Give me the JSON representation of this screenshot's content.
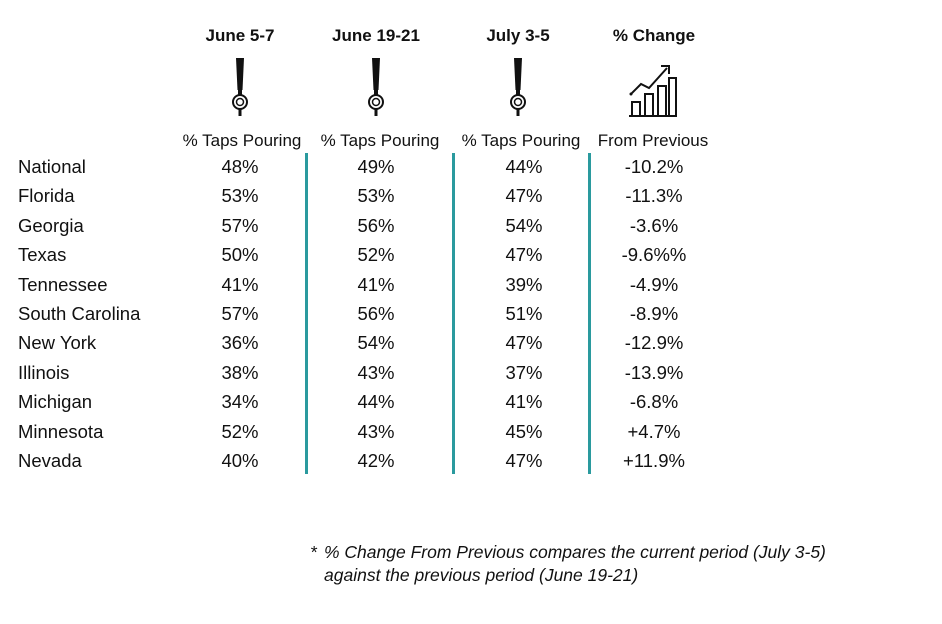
{
  "columns": [
    {
      "title": "June 5-7",
      "subtitle": "% Taps Pouring"
    },
    {
      "title": "June 19-21",
      "subtitle": "% Taps Pouring"
    },
    {
      "title": "July 3-5",
      "subtitle": "% Taps Pouring"
    },
    {
      "title": "% Change",
      "subtitle": "From Previous"
    }
  ],
  "icons": [
    "beer-tap-icon",
    "beer-tap-icon",
    "beer-tap-icon",
    "growth-chart-icon"
  ],
  "accent_color": "#2a9a9e",
  "rows": [
    {
      "state": "National",
      "v1": "48%",
      "v2": "49%",
      "v3": "44%",
      "change": "-10.2%"
    },
    {
      "state": "Florida",
      "v1": "53%",
      "v2": "53%",
      "v3": "47%",
      "change": "-11.3%"
    },
    {
      "state": "Georgia",
      "v1": "57%",
      "v2": "56%",
      "v3": "54%",
      "change": "-3.6%"
    },
    {
      "state": "Texas",
      "v1": "50%",
      "v2": "52%",
      "v3": "47%",
      "change": "-9.6%%"
    },
    {
      "state": "Tennessee",
      "v1": "41%",
      "v2": "41%",
      "v3": "39%",
      "change": "-4.9%"
    },
    {
      "state": "South Carolina",
      "v1": "57%",
      "v2": "56%",
      "v3": "51%",
      "change": "-8.9%"
    },
    {
      "state": "New York",
      "v1": "36%",
      "v2": "54%",
      "v3": "47%",
      "change": "-12.9%"
    },
    {
      "state": "Illinois",
      "v1": "38%",
      "v2": "43%",
      "v3": "37%",
      "change": "-13.9%"
    },
    {
      "state": "Michigan",
      "v1": "34%",
      "v2": "44%",
      "v3": "41%",
      "change": "-6.8%"
    },
    {
      "state": "Minnesota",
      "v1": "52%",
      "v2": "43%",
      "v3": "45%",
      "change": "+4.7%"
    },
    {
      "state": "Nevada",
      "v1": "40%",
      "v2": "42%",
      "v3": "47%",
      "change": "+11.9%"
    }
  ],
  "footnote": {
    "marker": "*",
    "line1": "% Change From Previous compares the current period (July 3-5)",
    "line2": "against the previous period (June 19-21)"
  }
}
